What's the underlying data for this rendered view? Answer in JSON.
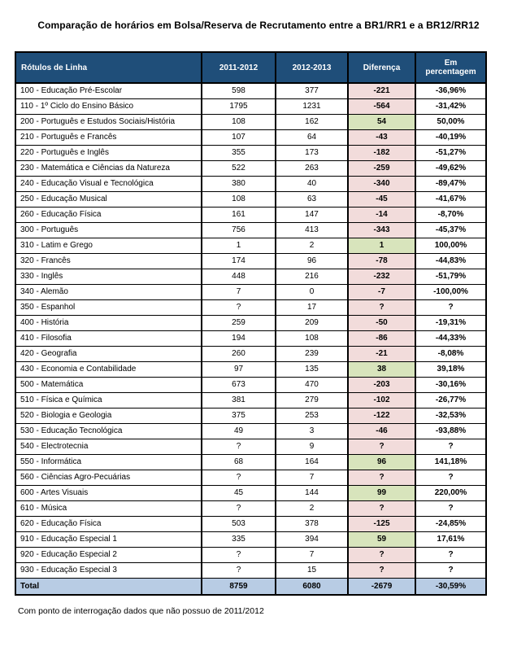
{
  "title": "Comparação de horários em Bolsa/Reserva de Recrutamento entre a BR1/RR1 e a BR12/RR12",
  "footnote": "Com ponto de interrogação dados que não possuo de 2011/2012",
  "colors": {
    "header_bg": "#1f4e79",
    "negative_cell": "#f2dcdb",
    "positive_cell": "#d8e4bc",
    "total_row_bg": "#b8cce4",
    "border": "#000000"
  },
  "chart_data": {
    "type": "table",
    "columns": [
      "Rótulos de Linha",
      "2011-2012",
      "2012-2013",
      "Diferença",
      "Em percentagem"
    ],
    "rows": [
      {
        "label": "100 - Educação Pré-Escolar",
        "v2011": "598",
        "v2012": "377",
        "diff": "-221",
        "pct": "-36,96%",
        "diff_color": "pink"
      },
      {
        "label": "110 - 1º Ciclo do Ensino Básico",
        "v2011": "1795",
        "v2012": "1231",
        "diff": "-564",
        "pct": "-31,42%",
        "diff_color": "pink"
      },
      {
        "label": "200 - Português e Estudos Sociais/História",
        "v2011": "108",
        "v2012": "162",
        "diff": "54",
        "pct": "50,00%",
        "diff_color": "green"
      },
      {
        "label": "210 - Português e Francês",
        "v2011": "107",
        "v2012": "64",
        "diff": "-43",
        "pct": "-40,19%",
        "diff_color": "pink"
      },
      {
        "label": "220 - Português e Inglês",
        "v2011": "355",
        "v2012": "173",
        "diff": "-182",
        "pct": "-51,27%",
        "diff_color": "pink"
      },
      {
        "label": "230 - Matemática e Ciências da Natureza",
        "v2011": "522",
        "v2012": "263",
        "diff": "-259",
        "pct": "-49,62%",
        "diff_color": "pink"
      },
      {
        "label": "240 - Educação Visual e Tecnológica",
        "v2011": "380",
        "v2012": "40",
        "diff": "-340",
        "pct": "-89,47%",
        "diff_color": "pink"
      },
      {
        "label": "250 - Educação Musical",
        "v2011": "108",
        "v2012": "63",
        "diff": "-45",
        "pct": "-41,67%",
        "diff_color": "pink"
      },
      {
        "label": "260 - Educação Física",
        "v2011": "161",
        "v2012": "147",
        "diff": "-14",
        "pct": "-8,70%",
        "diff_color": "pink"
      },
      {
        "label": "300 - Português",
        "v2011": "756",
        "v2012": "413",
        "diff": "-343",
        "pct": "-45,37%",
        "diff_color": "pink"
      },
      {
        "label": "310 - Latim e Grego",
        "v2011": "1",
        "v2012": "2",
        "diff": "1",
        "pct": "100,00%",
        "diff_color": "green"
      },
      {
        "label": "320 - Francês",
        "v2011": "174",
        "v2012": "96",
        "diff": "-78",
        "pct": "-44,83%",
        "diff_color": "pink"
      },
      {
        "label": "330 - Inglês",
        "v2011": "448",
        "v2012": "216",
        "diff": "-232",
        "pct": "-51,79%",
        "diff_color": "pink"
      },
      {
        "label": "340 - Alemão",
        "v2011": "7",
        "v2012": "0",
        "diff": "-7",
        "pct": "-100,00%",
        "diff_color": "pink"
      },
      {
        "label": "350 - Espanhol",
        "v2011": "?",
        "v2012": "17",
        "diff": "?",
        "pct": "?",
        "diff_color": "pink"
      },
      {
        "label": "400 - História",
        "v2011": "259",
        "v2012": "209",
        "diff": "-50",
        "pct": "-19,31%",
        "diff_color": "pink"
      },
      {
        "label": "410 - Filosofia",
        "v2011": "194",
        "v2012": "108",
        "diff": "-86",
        "pct": "-44,33%",
        "diff_color": "pink"
      },
      {
        "label": "420 - Geografia",
        "v2011": "260",
        "v2012": "239",
        "diff": "-21",
        "pct": "-8,08%",
        "diff_color": "pink"
      },
      {
        "label": "430 - Economia e Contabilidade",
        "v2011": "97",
        "v2012": "135",
        "diff": "38",
        "pct": "39,18%",
        "diff_color": "green"
      },
      {
        "label": "500 - Matemática",
        "v2011": "673",
        "v2012": "470",
        "diff": "-203",
        "pct": "-30,16%",
        "diff_color": "pink"
      },
      {
        "label": "510 - Física e Química",
        "v2011": "381",
        "v2012": "279",
        "diff": "-102",
        "pct": "-26,77%",
        "diff_color": "pink"
      },
      {
        "label": "520 - Biologia e Geologia",
        "v2011": "375",
        "v2012": "253",
        "diff": "-122",
        "pct": "-32,53%",
        "diff_color": "pink"
      },
      {
        "label": "530 - Educação Tecnológica",
        "v2011": "49",
        "v2012": "3",
        "diff": "-46",
        "pct": "-93,88%",
        "diff_color": "pink"
      },
      {
        "label": "540 - Electrotecnia",
        "v2011": "?",
        "v2012": "9",
        "diff": "?",
        "pct": "?",
        "diff_color": "pink"
      },
      {
        "label": "550 - Informática",
        "v2011": "68",
        "v2012": "164",
        "diff": "96",
        "pct": "141,18%",
        "diff_color": "green"
      },
      {
        "label": "560 - Ciências Agro-Pecuárias",
        "v2011": "?",
        "v2012": "7",
        "diff": "?",
        "pct": "?",
        "diff_color": "pink"
      },
      {
        "label": "600 - Artes Visuais",
        "v2011": "45",
        "v2012": "144",
        "diff": "99",
        "pct": "220,00%",
        "diff_color": "green"
      },
      {
        "label": "610 - Música",
        "v2011": "?",
        "v2012": "2",
        "diff": "?",
        "pct": "?",
        "diff_color": "pink"
      },
      {
        "label": "620 - Educação Física",
        "v2011": "503",
        "v2012": "378",
        "diff": "-125",
        "pct": "-24,85%",
        "diff_color": "pink"
      },
      {
        "label": "910 - Educação Especial 1",
        "v2011": "335",
        "v2012": "394",
        "diff": "59",
        "pct": "17,61%",
        "diff_color": "green"
      },
      {
        "label": "920 - Educação Especial 2",
        "v2011": "?",
        "v2012": "7",
        "diff": "?",
        "pct": "?",
        "diff_color": "pink"
      },
      {
        "label": "930 - Educação Especial 3",
        "v2011": "?",
        "v2012": "15",
        "diff": "?",
        "pct": "?",
        "diff_color": "pink"
      }
    ],
    "total": {
      "label": "Total",
      "v2011": "8759",
      "v2012": "6080",
      "diff": "-2679",
      "pct": "-30,59%"
    }
  }
}
